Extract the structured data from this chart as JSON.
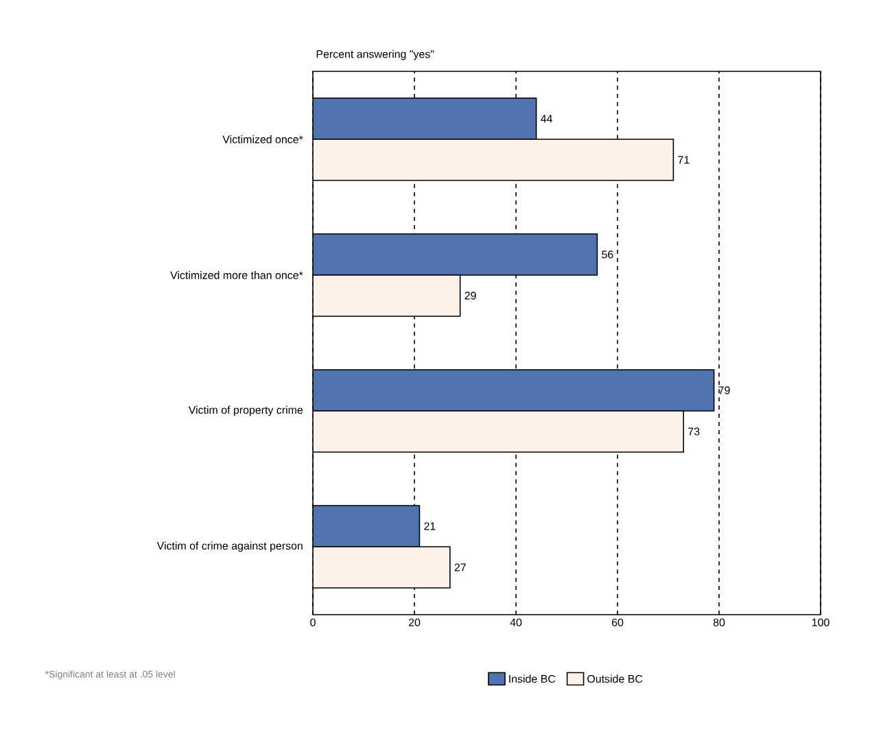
{
  "chart_data": {
    "type": "bar",
    "orientation": "horizontal",
    "title": "Percent answering \"yes\"",
    "categories": [
      "Victimized once*",
      "Victimized more than once*",
      "Victim of property crime",
      "Victim of crime against person"
    ],
    "series": [
      {
        "name": "Inside BC",
        "color": "#4f74b0",
        "values": [
          44,
          56,
          79,
          21
        ]
      },
      {
        "name": "Outside BC",
        "color": "#fdf1ea",
        "values": [
          71,
          29,
          73,
          27
        ]
      }
    ],
    "xlim": [
      0,
      100
    ],
    "xticks": [
      0,
      20,
      40,
      60,
      80,
      100
    ],
    "grid": "x",
    "legend": "bottom",
    "data_labels": true,
    "annotations": [
      "*Significant at least at .05 level"
    ]
  }
}
